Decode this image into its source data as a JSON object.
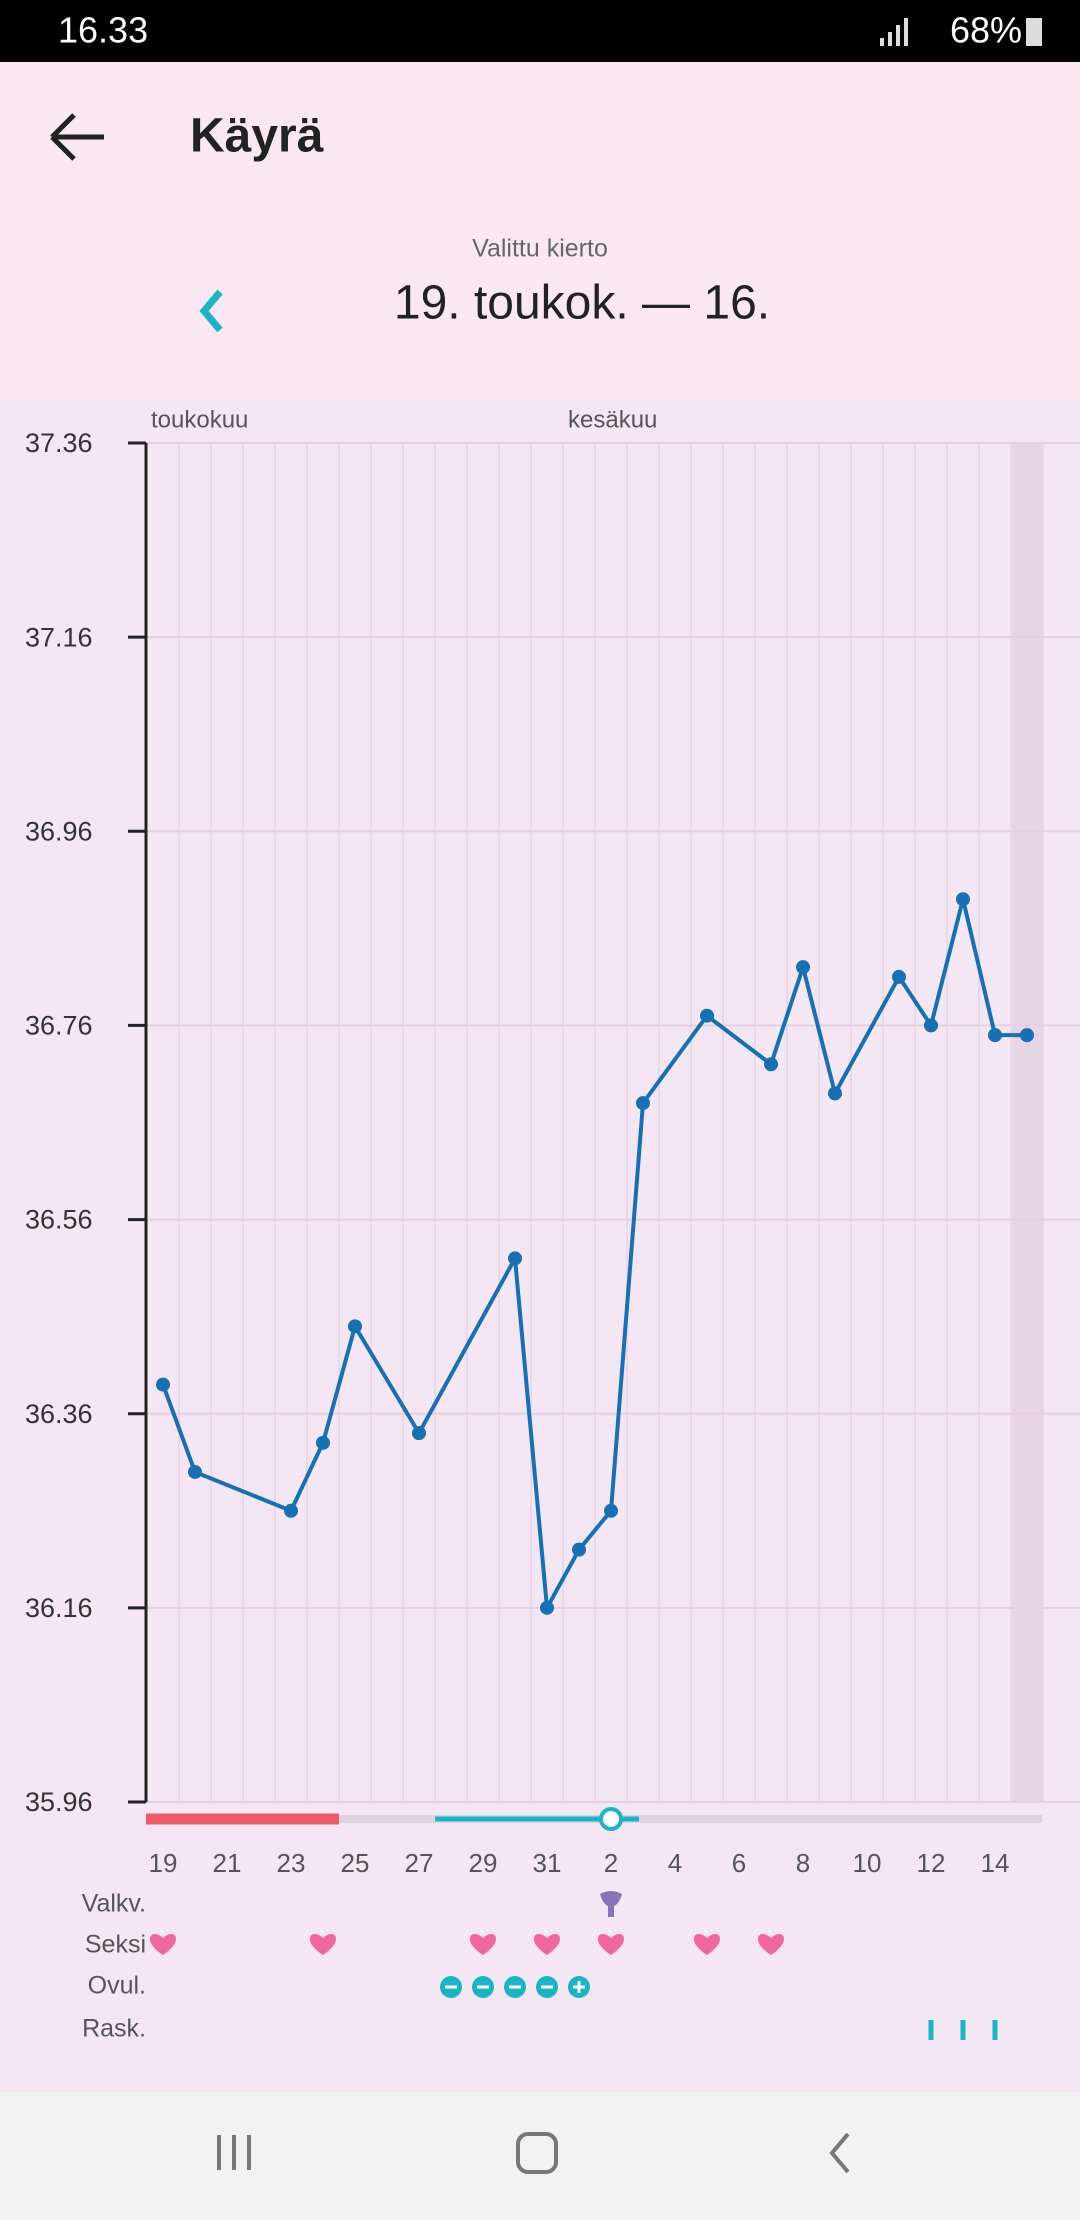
{
  "status_bar": {
    "time": "16.33",
    "battery": "68%"
  },
  "header": {
    "title": "Käyrä"
  },
  "cycle": {
    "label": "Valittu kierto",
    "range": "19. toukok. — 16."
  },
  "chart_data": {
    "type": "line",
    "months": [
      "toukokuu",
      "kesäkuu"
    ],
    "categories": [
      "19",
      "21",
      "23",
      "25",
      "27",
      "29",
      "31",
      "2",
      "4",
      "6",
      "8",
      "10",
      "12",
      "14"
    ],
    "series": [
      {
        "color": "#1670b4",
        "x": [
          "19",
          "20",
          "23",
          "24",
          "25",
          "27",
          "30",
          "31",
          "1",
          "2",
          "3",
          "5",
          "7",
          "8",
          "9",
          "11",
          "12",
          "13",
          "14",
          "15"
        ],
        "values": [
          36.39,
          36.3,
          36.26,
          36.33,
          36.45,
          36.34,
          36.52,
          36.16,
          36.22,
          36.26,
          36.68,
          36.77,
          36.72,
          36.82,
          36.69,
          36.81,
          36.76,
          36.89,
          36.75,
          36.75
        ]
      }
    ],
    "ylim": [
      35.96,
      37.36
    ],
    "yticks": [
      35.96,
      36.16,
      36.36,
      36.56,
      36.76,
      36.96,
      37.16,
      37.36
    ],
    "grid": true,
    "rows": [
      "Valkv.",
      "Seksi",
      "Ovul.",
      "Rask."
    ]
  }
}
